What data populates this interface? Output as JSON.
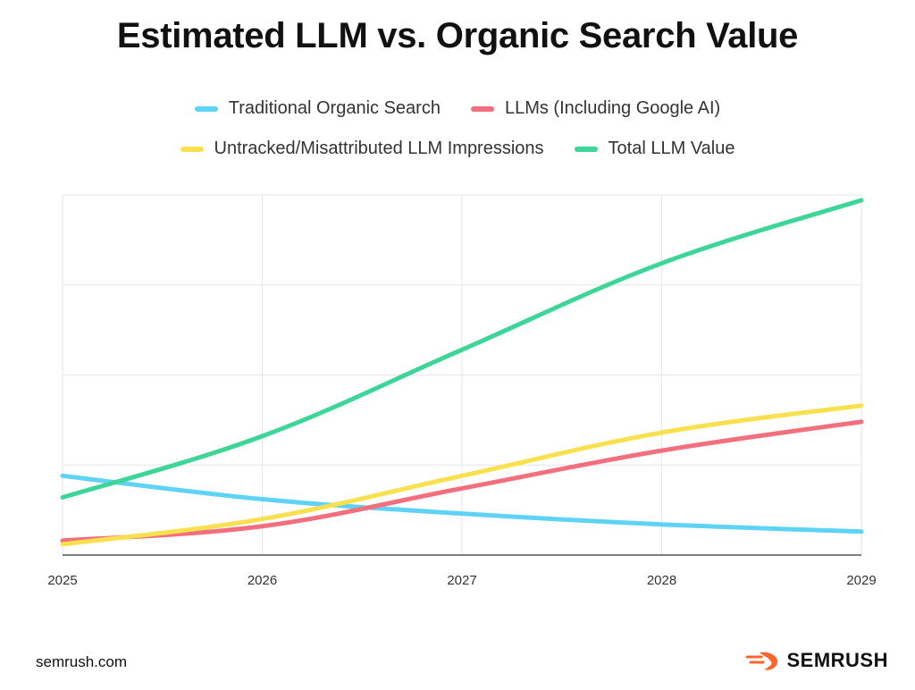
{
  "footer": {
    "source": "semrush.com",
    "brand": "SEMRUSH",
    "brand_color": "#FF642D"
  },
  "chart_data": {
    "type": "line",
    "title": "Estimated LLM vs. Organic Search Value",
    "xlabel": "",
    "ylabel": "",
    "x": [
      "2025",
      "2026",
      "2027",
      "2028",
      "2029"
    ],
    "ylim": [
      0,
      100
    ],
    "grid": true,
    "legend_position": "top",
    "series": [
      {
        "name": "Traditional Organic Search",
        "color": "#5FD3F5",
        "values": [
          22,
          15.5,
          11.5,
          8.5,
          6.5
        ]
      },
      {
        "name": "LLMs (Including Google AI)",
        "color": "#F2707E",
        "values": [
          4,
          8,
          18.5,
          29,
          37
        ]
      },
      {
        "name": "Untracked/Misattributed LLM Impressions",
        "color": "#F8E04E",
        "values": [
          3,
          10,
          22,
          34,
          41.5
        ]
      },
      {
        "name": "Total LLM Value",
        "color": "#3DD598",
        "values": [
          16,
          33,
          57,
          81,
          98.5
        ]
      }
    ]
  }
}
